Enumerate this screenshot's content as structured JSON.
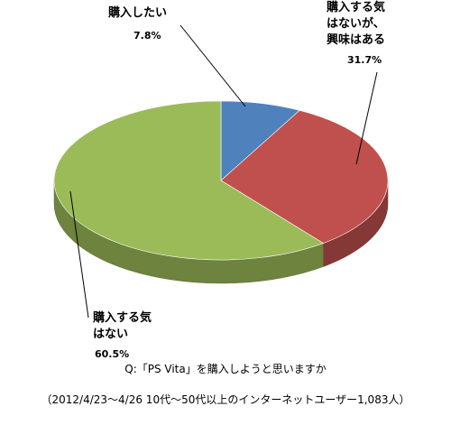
{
  "chart_data": {
    "type": "pie",
    "title": "Q:「PS Vita」を購入しようと思いますか",
    "subtitle": "（2012/4/23〜4/26 10代〜50代以上のインターネットユーザー1,083人）",
    "categories": [
      "購入したい",
      "購入する気\nはないが、\n興味はある",
      "購入する気\nはない"
    ],
    "values": [
      7.8,
      31.7,
      60.5
    ],
    "value_labels": [
      "7.8%",
      "31.7%",
      "60.5%"
    ],
    "colors": [
      "#4f81bd",
      "#c0504d",
      "#9bbb59"
    ]
  }
}
